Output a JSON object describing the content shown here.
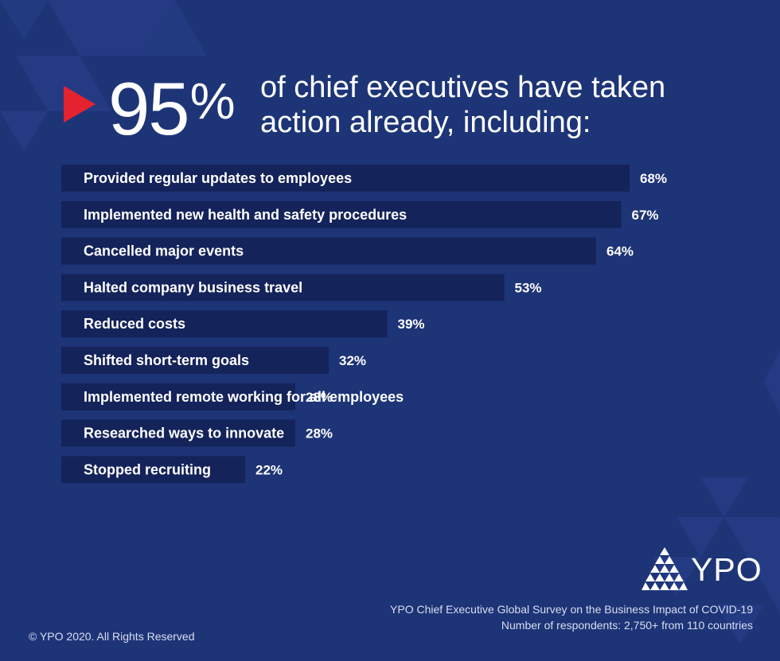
{
  "headline": {
    "figure": "95",
    "percent_sign": "%",
    "line1": "of chief executives have taken",
    "line2": "action already, including:"
  },
  "chart_data": {
    "type": "bar",
    "orientation": "horizontal",
    "categories": [
      "Provided regular updates to employees",
      "Implemented new health and safety procedures",
      "Cancelled major events",
      "Halted company business travel",
      "Reduced costs",
      "Shifted short-term goals",
      "Implemented remote working for all employees",
      "Researched ways to innovate",
      "Stopped recruiting"
    ],
    "values": [
      68,
      67,
      64,
      53,
      39,
      32,
      28,
      28,
      22
    ],
    "value_labels": [
      "68%",
      "67%",
      "64%",
      "53%",
      "39%",
      "32%",
      "28%",
      "28%",
      "22%"
    ],
    "bar_color": "#14235a",
    "grid": false
  },
  "brand": {
    "logo_text": "YPO",
    "logo_icon": "pyramid-icon"
  },
  "source": {
    "line1": "YPO Chief Executive Global Survey on the Business Impact of COVID-19",
    "line2": "Number of respondents: 2,750+  from 110 countries"
  },
  "copyright": "© YPO 2020. All Rights Reserved",
  "colors": {
    "background": "#1d3477",
    "bar": "#14235a",
    "accent": "#e32330",
    "text": "#ffffff"
  }
}
